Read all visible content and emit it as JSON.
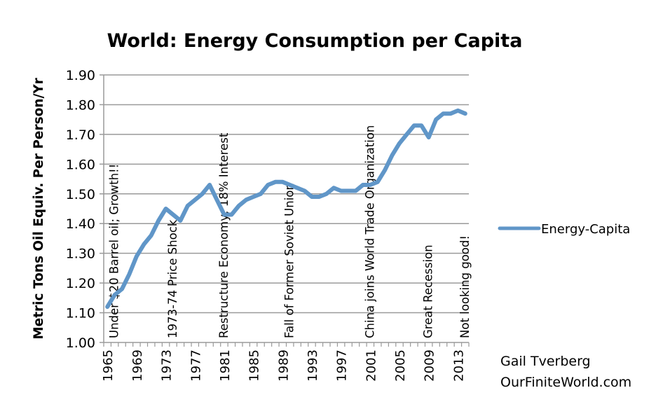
{
  "chart_data": {
    "type": "line",
    "title": "World: Energy Consumption per Capita",
    "xlabel": "",
    "ylabel": "Metric Tons Oil Equiv. Per Person/Yr",
    "ylim": [
      1.0,
      1.9
    ],
    "yticks": [
      "1.00",
      "1.10",
      "1.20",
      "1.30",
      "1.40",
      "1.50",
      "1.60",
      "1.70",
      "1.80",
      "1.90"
    ],
    "x": [
      1965,
      1966,
      1967,
      1968,
      1969,
      1970,
      1971,
      1972,
      1973,
      1974,
      1975,
      1976,
      1977,
      1978,
      1979,
      1980,
      1981,
      1982,
      1983,
      1984,
      1985,
      1986,
      1987,
      1988,
      1989,
      1990,
      1991,
      1992,
      1993,
      1994,
      1995,
      1996,
      1997,
      1998,
      1999,
      2000,
      2001,
      2002,
      2003,
      2004,
      2005,
      2006,
      2007,
      2008,
      2009,
      2010,
      2011,
      2012,
      2013,
      2014
    ],
    "xtick_labels": [
      "1965",
      "1969",
      "1973",
      "1977",
      "1981",
      "1985",
      "1989",
      "1993",
      "1997",
      "2001",
      "2005",
      "2009",
      "2013"
    ],
    "grid": "horizontal",
    "legend_position": "right",
    "series": [
      {
        "name": "Energy-Capita",
        "color": "#6096c8",
        "values": [
          1.12,
          1.16,
          1.18,
          1.23,
          1.29,
          1.33,
          1.36,
          1.41,
          1.45,
          1.43,
          1.41,
          1.46,
          1.48,
          1.5,
          1.53,
          1.48,
          1.43,
          1.43,
          1.46,
          1.48,
          1.49,
          1.5,
          1.53,
          1.54,
          1.54,
          1.53,
          1.52,
          1.51,
          1.49,
          1.49,
          1.5,
          1.52,
          1.51,
          1.51,
          1.51,
          1.53,
          1.53,
          1.54,
          1.58,
          1.63,
          1.67,
          1.7,
          1.73,
          1.73,
          1.69,
          1.75,
          1.77,
          1.77,
          1.78,
          1.77
        ]
      }
    ],
    "annotations": [
      {
        "text": "Under $20 Barrel oil; Growth!!",
        "year": 1966
      },
      {
        "text": "1973-74  Price Shock",
        "year": 1974
      },
      {
        "text": "Restructure Economy; 18% Interest",
        "year": 1981
      },
      {
        "text": "Fall of Former Soviet Union",
        "year": 1990
      },
      {
        "text": "China joins World Trade Organization",
        "year": 2001
      },
      {
        "text": "Great Recession",
        "year": 2009
      },
      {
        "text": "Not looking good!",
        "year": 2014
      }
    ]
  },
  "credit": {
    "line1": "Gail Tverberg",
    "line2": "OurFiniteWorld.com"
  }
}
